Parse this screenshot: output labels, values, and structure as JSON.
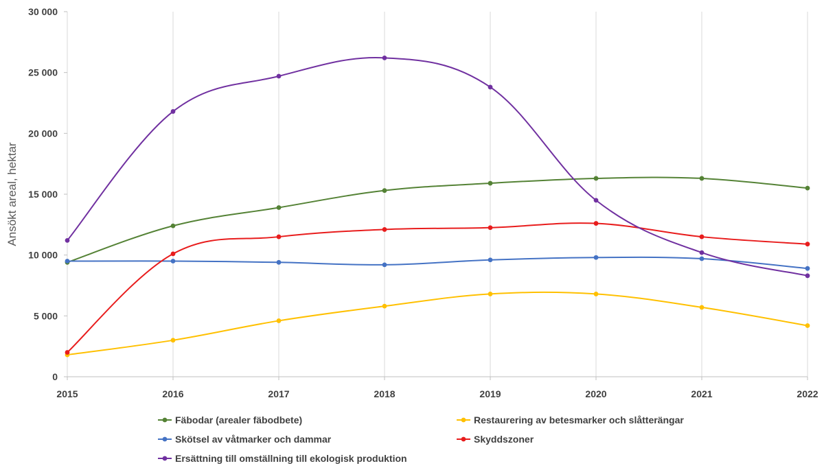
{
  "chart_data": {
    "type": "line",
    "title": "",
    "xlabel": "",
    "ylabel": "Ansökt areal, hektar",
    "x": [
      "2015",
      "2016",
      "2017",
      "2018",
      "2019",
      "2020",
      "2021",
      "2022"
    ],
    "ylim": [
      0,
      30000
    ],
    "yticks": [
      0,
      5000,
      10000,
      15000,
      20000,
      25000,
      30000
    ],
    "ytick_labels": [
      "0",
      "5 000",
      "10 000",
      "15 000",
      "20 000",
      "25 000",
      "30 000"
    ],
    "grid": "vertical gridlines only",
    "legend_position": "bottom",
    "series": [
      {
        "name": "Fäbodar (arealer fäbodbete)",
        "color": "#548235",
        "values": [
          9400,
          12400,
          13900,
          15300,
          15900,
          16300,
          16300,
          15500
        ]
      },
      {
        "name": "Restaurering av betesmarker och slåtterängar",
        "color": "#FFC000",
        "values": [
          1800,
          3000,
          4600,
          5800,
          6800,
          6800,
          5700,
          4200
        ]
      },
      {
        "name": "Skötsel av våtmarker och dammar",
        "color": "#4472C4",
        "values": [
          9500,
          9500,
          9400,
          9200,
          9600,
          9800,
          9700,
          8900
        ]
      },
      {
        "name": "Skyddszoner",
        "color": "#E81C1C",
        "values": [
          2000,
          10100,
          11500,
          12100,
          12250,
          12600,
          11500,
          10900
        ]
      },
      {
        "name": "Ersättning till omställning till ekologisk produktion",
        "color": "#7030A0",
        "values": [
          11200,
          21800,
          24700,
          26200,
          23800,
          14500,
          10200,
          8300
        ]
      }
    ]
  }
}
